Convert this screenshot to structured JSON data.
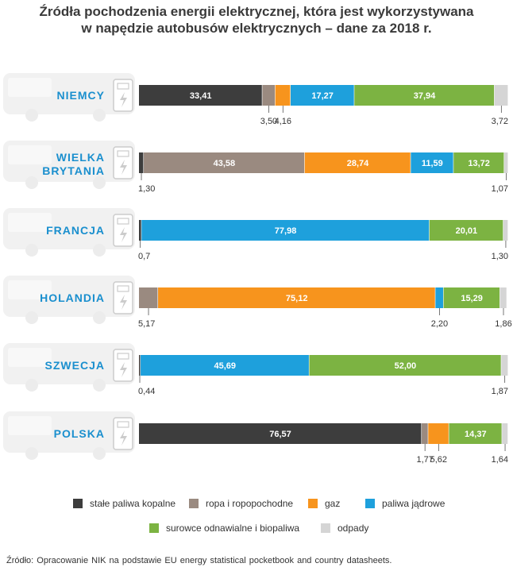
{
  "chart_data": {
    "type": "bar",
    "stacked": true,
    "orientation": "horizontal",
    "title": "Źródła pochodzenia energii elektrycznej, która jest wykorzystywana w napędzie autobusów elektrycznych – dane za 2018 r.",
    "title_lines": [
      "Źródła pochodzenia energii elektrycznej, która jest wykorzystywana",
      "w napędzie autobusów elektrycznych – dane za 2018 r."
    ],
    "unit": "%",
    "categories": [
      "NIEMCY",
      "WIELKA BRYTANIA",
      "FRANCJA",
      "HOLANDIA",
      "SZWECJA",
      "POLSKA"
    ],
    "category_lines": [
      [
        "NIEMCY"
      ],
      [
        "WIELKA",
        "BRYTANIA"
      ],
      [
        "FRANCJA"
      ],
      [
        "HOLANDIA"
      ],
      [
        "SZWECJA"
      ],
      [
        "POLSKA"
      ]
    ],
    "series": [
      {
        "name": "stałe paliwa kopalne",
        "color": "#3d3d3d",
        "values": [
          33.41,
          1.3,
          0.7,
          0,
          0.44,
          76.57
        ],
        "labels": [
          "33,41",
          "1,30",
          "0,7",
          "",
          "0,44",
          "76,57"
        ]
      },
      {
        "name": "ropa i ropopochodne",
        "color": "#9a8a80",
        "values": [
          3.5,
          43.58,
          0,
          5.17,
          0,
          1.77
        ],
        "labels": [
          "3,50",
          "43,58",
          "",
          "5,17",
          "",
          "1,77"
        ]
      },
      {
        "name": "gaz",
        "color": "#f7941d",
        "values": [
          4.16,
          28.74,
          0,
          75.12,
          0,
          5.62
        ],
        "labels": [
          "4,16",
          "28,74",
          "",
          "75,12",
          "",
          "5,62"
        ]
      },
      {
        "name": "paliwa jądrowe",
        "color": "#1ea0dc",
        "values": [
          17.27,
          11.59,
          77.98,
          2.2,
          45.69,
          0
        ],
        "labels": [
          "17,27",
          "11,59",
          "77,98",
          "2,20",
          "45,69",
          ""
        ]
      },
      {
        "name": "surowce odnawialne i biopaliwa",
        "color": "#7cb342",
        "values": [
          37.94,
          13.72,
          20.01,
          15.29,
          52.0,
          14.37
        ],
        "labels": [
          "37,94",
          "13,72",
          "20,01",
          "15,29",
          "52,00",
          "14,37"
        ]
      },
      {
        "name": "odpady",
        "color": "#d5d5d5",
        "values": [
          3.72,
          1.07,
          1.3,
          1.86,
          1.87,
          1.64
        ],
        "labels": [
          "3,72",
          "1,07",
          "1,30",
          "1,86",
          "1,87",
          "1,64"
        ]
      }
    ],
    "xlim": [
      0,
      100
    ],
    "grid": false,
    "legend": "bottom"
  },
  "source_text": "Źródło: Opracowanie NIK na podstawie EU energy statistical pocketbook and country datasheets.",
  "colors": {
    "country_label": "#1a8fce",
    "bus_silhouette": "#f1f1f1",
    "charger_icon": "#cccccc"
  }
}
